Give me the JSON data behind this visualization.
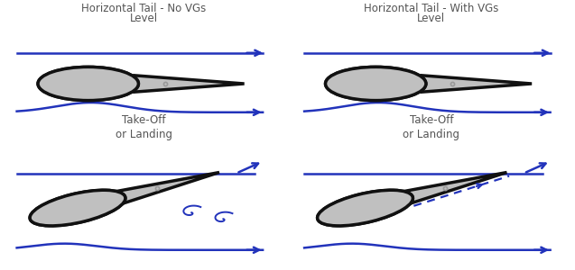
{
  "title_left": "Horizontal Tail - No VGs",
  "title_right": "Horizontal Tail - With VGs",
  "label_level": "Level",
  "label_takeoff": "Take-Off\nor Landing",
  "text_color": "#555555",
  "airfoil_color": "#c0c0c0",
  "airfoil_edge": "#111111",
  "flow_color": "#2233bb",
  "bg_color": "#ffffff",
  "title_fontsize": 8.5,
  "label_fontsize": 8.5,
  "lw_airfoil": 2.5,
  "lw_flow": 1.8
}
